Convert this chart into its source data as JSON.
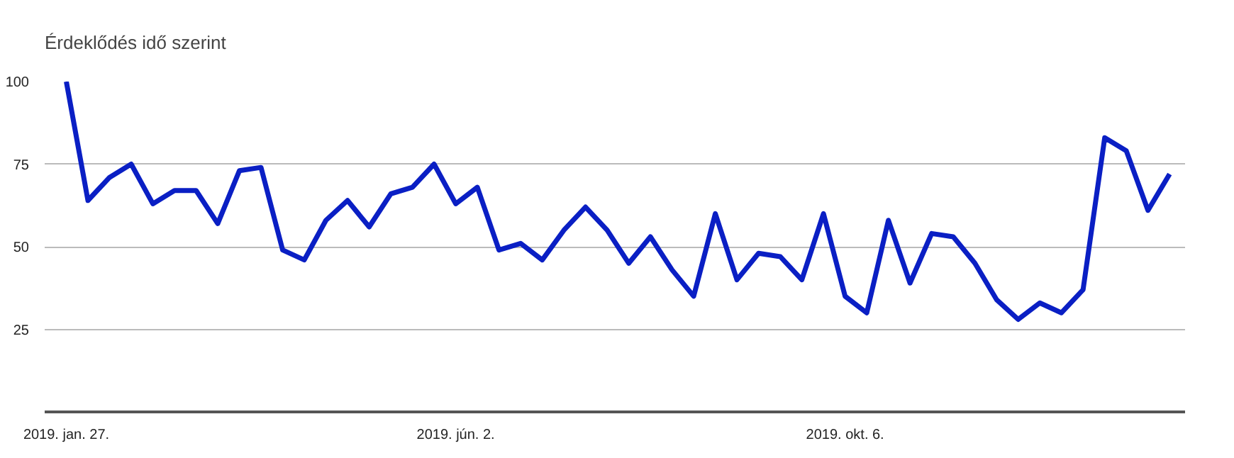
{
  "chart_data": {
    "type": "line",
    "title": "Érdeklődés idő szerint",
    "x": [
      "2019-01-27",
      "2019-02-03",
      "2019-02-10",
      "2019-02-17",
      "2019-02-24",
      "2019-03-03",
      "2019-03-10",
      "2019-03-17",
      "2019-03-24",
      "2019-03-31",
      "2019-04-07",
      "2019-04-14",
      "2019-04-21",
      "2019-04-28",
      "2019-05-05",
      "2019-05-12",
      "2019-05-19",
      "2019-05-26",
      "2019-06-02",
      "2019-06-09",
      "2019-06-16",
      "2019-06-23",
      "2019-06-30",
      "2019-07-07",
      "2019-07-14",
      "2019-07-21",
      "2019-07-28",
      "2019-08-04",
      "2019-08-11",
      "2019-08-18",
      "2019-08-25",
      "2019-09-01",
      "2019-09-08",
      "2019-09-15",
      "2019-09-22",
      "2019-09-29",
      "2019-10-06",
      "2019-10-13",
      "2019-10-20",
      "2019-10-27",
      "2019-11-03",
      "2019-11-10",
      "2019-11-17",
      "2019-11-24",
      "2019-12-01",
      "2019-12-08",
      "2019-12-15",
      "2019-12-22",
      "2019-12-29",
      "2020-01-05",
      "2020-01-12",
      "2020-01-19"
    ],
    "series": [
      {
        "color": "#0a1fc4",
        "values": [
          100,
          64,
          71,
          75,
          63,
          67,
          67,
          57,
          73,
          74,
          49,
          46,
          58,
          64,
          56,
          66,
          68,
          75,
          63,
          68,
          49,
          51,
          46,
          55,
          62,
          55,
          45,
          53,
          43,
          35,
          60,
          40,
          48,
          47,
          40,
          60,
          35,
          30,
          58,
          39,
          54,
          53,
          45,
          34,
          28,
          33,
          30,
          37,
          83,
          79,
          61,
          72
        ]
      }
    ],
    "xlim": [
      "2019-01-20",
      "2020-01-24"
    ],
    "xticks": [
      {
        "value": "2019-01-27",
        "label": "2019. jan. 27."
      },
      {
        "value": "2019-06-02",
        "label": "2019. jún. 2."
      },
      {
        "value": "2019-10-06",
        "label": "2019. okt. 6."
      }
    ],
    "ylim": [
      0,
      100
    ],
    "yticks": [
      25,
      50,
      75,
      100
    ],
    "grid": "y",
    "marker": "none",
    "line_style": "solid"
  }
}
